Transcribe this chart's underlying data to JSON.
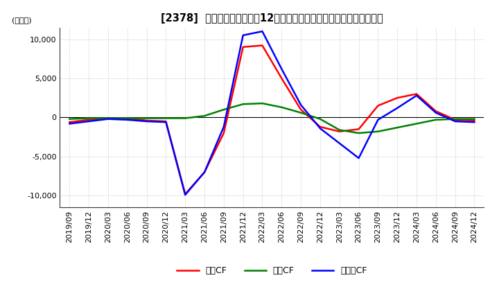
{
  "title": "[2378]  キャッシュフローの12か月移動合計の対前年同期増減額の推移",
  "ylabel": "(百万円)",
  "ylim": [
    -11500,
    11500
  ],
  "yticks": [
    -10000,
    -5000,
    0,
    5000,
    10000
  ],
  "background_color": "#ffffff",
  "grid_color": "#aaaaaa",
  "dates": [
    "2019/09",
    "2019/12",
    "2020/03",
    "2020/06",
    "2020/09",
    "2020/12",
    "2021/03",
    "2021/06",
    "2021/09",
    "2021/12",
    "2022/03",
    "2022/06",
    "2022/09",
    "2022/12",
    "2023/03",
    "2023/06",
    "2023/09",
    "2023/12",
    "2024/03",
    "2024/06",
    "2024/09",
    "2024/12"
  ],
  "eigyo_cf": [
    -600,
    -300,
    -100,
    -100,
    -400,
    -500,
    -9800,
    -7000,
    -2000,
    9000,
    9200,
    5000,
    1000,
    -1200,
    -1800,
    -1500,
    1500,
    2500,
    3000,
    800,
    -300,
    -400
  ],
  "toshi_cf": [
    -200,
    -100,
    -100,
    -100,
    -100,
    -100,
    -100,
    200,
    1000,
    1700,
    1800,
    1300,
    600,
    -200,
    -1600,
    -2000,
    -1800,
    -1300,
    -800,
    -300,
    -200,
    -200
  ],
  "free_cf": [
    -800,
    -500,
    -200,
    -300,
    -500,
    -600,
    -9900,
    -7000,
    -1200,
    10500,
    11000,
    6200,
    1600,
    -1400,
    -3300,
    -5200,
    -300,
    1200,
    2800,
    600,
    -500,
    -600
  ],
  "eigyo_color": "#ff0000",
  "toshi_color": "#008000",
  "free_color": "#0000ff",
  "line_width": 1.8,
  "title_fontsize": 10.5,
  "legend_fontsize": 9,
  "tick_fontsize": 8,
  "ylabel_fontsize": 8
}
